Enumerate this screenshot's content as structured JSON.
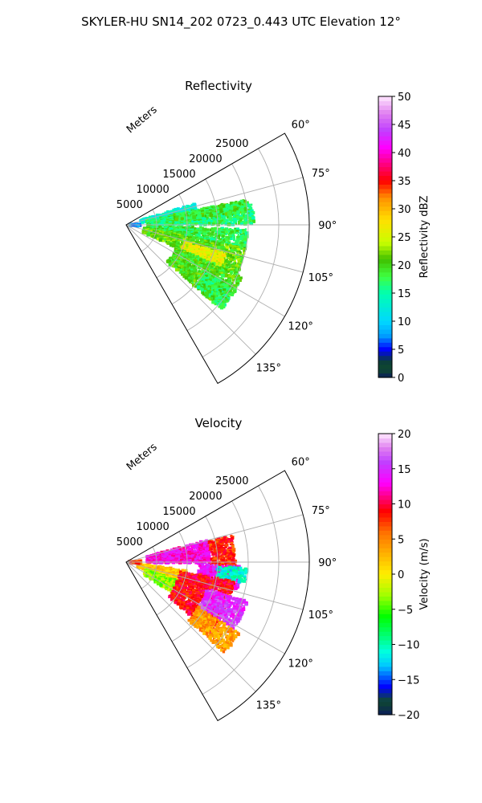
{
  "figure": {
    "suptitle": "SKYLER-HU  SN14_202  0723_0.443 UTC Elevation 12°"
  },
  "chart_data": [
    {
      "type": "heatmap",
      "projection": "polar-sector",
      "title": "Reflectivity",
      "radial_label": "Meters",
      "radial_ticks": [
        5000,
        10000,
        15000,
        20000,
        25000
      ],
      "radial_tick_labels": [
        "5000",
        "10000",
        "15000",
        "20000",
        "25000"
      ],
      "r_max": 30000,
      "azimuth_range_deg": [
        60,
        150
      ],
      "azimuth_ticks_deg": [
        60,
        75,
        90,
        105,
        120,
        135
      ],
      "azimuth_tick_labels": [
        "60°",
        "75°",
        "90°",
        "105°",
        "120°",
        "135°"
      ],
      "grid": true,
      "colorbar": {
        "label": "Reflectivity dBZ",
        "range": [
          0,
          50
        ],
        "ticks": [
          0,
          5,
          10,
          15,
          20,
          25,
          30,
          35,
          40,
          45,
          50
        ],
        "tick_labels": [
          "0",
          "5",
          "10",
          "15",
          "20",
          "25",
          "30",
          "35",
          "40",
          "45",
          "50"
        ]
      },
      "colormap_stops": [
        {
          "v": 0,
          "c": "#0b1e5a"
        },
        {
          "v": 1.5,
          "c": "#0f4a2e"
        },
        {
          "v": 3,
          "c": "#0b3b3b"
        },
        {
          "v": 5,
          "c": "#0000ff"
        },
        {
          "v": 7.5,
          "c": "#00a0ff"
        },
        {
          "v": 10,
          "c": "#00d8ff"
        },
        {
          "v": 15,
          "c": "#00ffb0"
        },
        {
          "v": 18,
          "c": "#40ff40"
        },
        {
          "v": 21,
          "c": "#40c000"
        },
        {
          "v": 24,
          "c": "#c8ff00"
        },
        {
          "v": 28,
          "c": "#ffe000"
        },
        {
          "v": 32,
          "c": "#ff9000"
        },
        {
          "v": 35,
          "c": "#ff0000"
        },
        {
          "v": 38,
          "c": "#ff0080"
        },
        {
          "v": 41,
          "c": "#ff00ff"
        },
        {
          "v": 44,
          "c": "#c040ff"
        },
        {
          "v": 47,
          "c": "#e080f0"
        },
        {
          "v": 50,
          "c": "#ffe8ff"
        }
      ],
      "regions": [
        {
          "az": [
            73,
            82
          ],
          "r": [
            2500,
            12000
          ],
          "value": 13
        },
        {
          "az": [
            79,
            90
          ],
          "r": [
            3500,
            21000
          ],
          "value": 17
        },
        {
          "az": [
            78,
            84
          ],
          "r": [
            8000,
            20000
          ],
          "value": 19
        },
        {
          "az": [
            92,
            101
          ],
          "r": [
            3500,
            20000
          ],
          "value": 18
        },
        {
          "az": [
            101,
            114
          ],
          "r": [
            3000,
            20000
          ],
          "value": 21
        },
        {
          "az": [
            106,
            118
          ],
          "r": [
            10000,
            17000
          ],
          "value": 26
        },
        {
          "az": [
            114,
            132
          ],
          "r": [
            9000,
            21000
          ],
          "value": 20
        },
        {
          "az": [
            120,
            131
          ],
          "r": [
            15000,
            21000
          ],
          "value": 18
        },
        {
          "az": [
            86,
            95
          ],
          "r": [
            500,
            2500
          ],
          "value": 8
        }
      ]
    },
    {
      "type": "heatmap",
      "projection": "polar-sector",
      "title": "Velocity",
      "radial_label": "Meters",
      "radial_ticks": [
        5000,
        10000,
        15000,
        20000,
        25000
      ],
      "radial_tick_labels": [
        "5000",
        "10000",
        "15000",
        "20000",
        "25000"
      ],
      "r_max": 30000,
      "azimuth_range_deg": [
        60,
        150
      ],
      "azimuth_ticks_deg": [
        60,
        75,
        90,
        105,
        120,
        135
      ],
      "azimuth_tick_labels": [
        "60°",
        "75°",
        "90°",
        "105°",
        "120°",
        "135°"
      ],
      "grid": true,
      "colorbar": {
        "label": "Velocity (m/s)",
        "range": [
          -20,
          20
        ],
        "ticks": [
          -20,
          -15,
          -10,
          -5,
          0,
          5,
          10,
          15,
          20
        ],
        "tick_labels": [
          "−20",
          "−15",
          "−10",
          "−5",
          "0",
          "5",
          "10",
          "15",
          "20"
        ]
      },
      "colormap_stops": [
        {
          "v": -20,
          "c": "#0b1e5a"
        },
        {
          "v": -18,
          "c": "#0f4a2e"
        },
        {
          "v": -16,
          "c": "#0000ff"
        },
        {
          "v": -13,
          "c": "#00c8ff"
        },
        {
          "v": -11,
          "c": "#00ffe0"
        },
        {
          "v": -9,
          "c": "#00ff80"
        },
        {
          "v": -6,
          "c": "#00ff00"
        },
        {
          "v": -3,
          "c": "#a0ff00"
        },
        {
          "v": 0,
          "c": "#ffee00"
        },
        {
          "v": 3,
          "c": "#ffb000"
        },
        {
          "v": 6,
          "c": "#ff7000"
        },
        {
          "v": 9,
          "c": "#ff0000"
        },
        {
          "v": 11,
          "c": "#ff0080"
        },
        {
          "v": 13,
          "c": "#ff00ff"
        },
        {
          "v": 16,
          "c": "#c040ff"
        },
        {
          "v": 18,
          "c": "#e080f0"
        },
        {
          "v": 20,
          "c": "#ffe8ff"
        }
      ],
      "regions": [
        {
          "az": [
            75,
            91
          ],
          "r": [
            3500,
            14000
          ],
          "value": 13
        },
        {
          "az": [
            76,
            92
          ],
          "r": [
            14000,
            18000
          ],
          "value": 8
        },
        {
          "az": [
            92,
            104
          ],
          "r": [
            12000,
            19000
          ],
          "value": 14
        },
        {
          "az": [
            93,
            100
          ],
          "r": [
            15000,
            20000
          ],
          "value": -11
        },
        {
          "az": [
            98,
            112
          ],
          "r": [
            2000,
            10000
          ],
          "value": 2
        },
        {
          "az": [
            110,
            124
          ],
          "r": [
            3500,
            9000
          ],
          "value": -3
        },
        {
          "az": [
            100,
            130
          ],
          "r": [
            9000,
            18000
          ],
          "value": 9
        },
        {
          "az": [
            108,
            122
          ],
          "r": [
            14000,
            21000
          ],
          "value": 15
        },
        {
          "az": [
            122,
            133
          ],
          "r": [
            14000,
            22000
          ],
          "value": 4
        },
        {
          "az": [
            86,
            96
          ],
          "r": [
            500,
            2500
          ],
          "value": 7
        }
      ]
    }
  ]
}
